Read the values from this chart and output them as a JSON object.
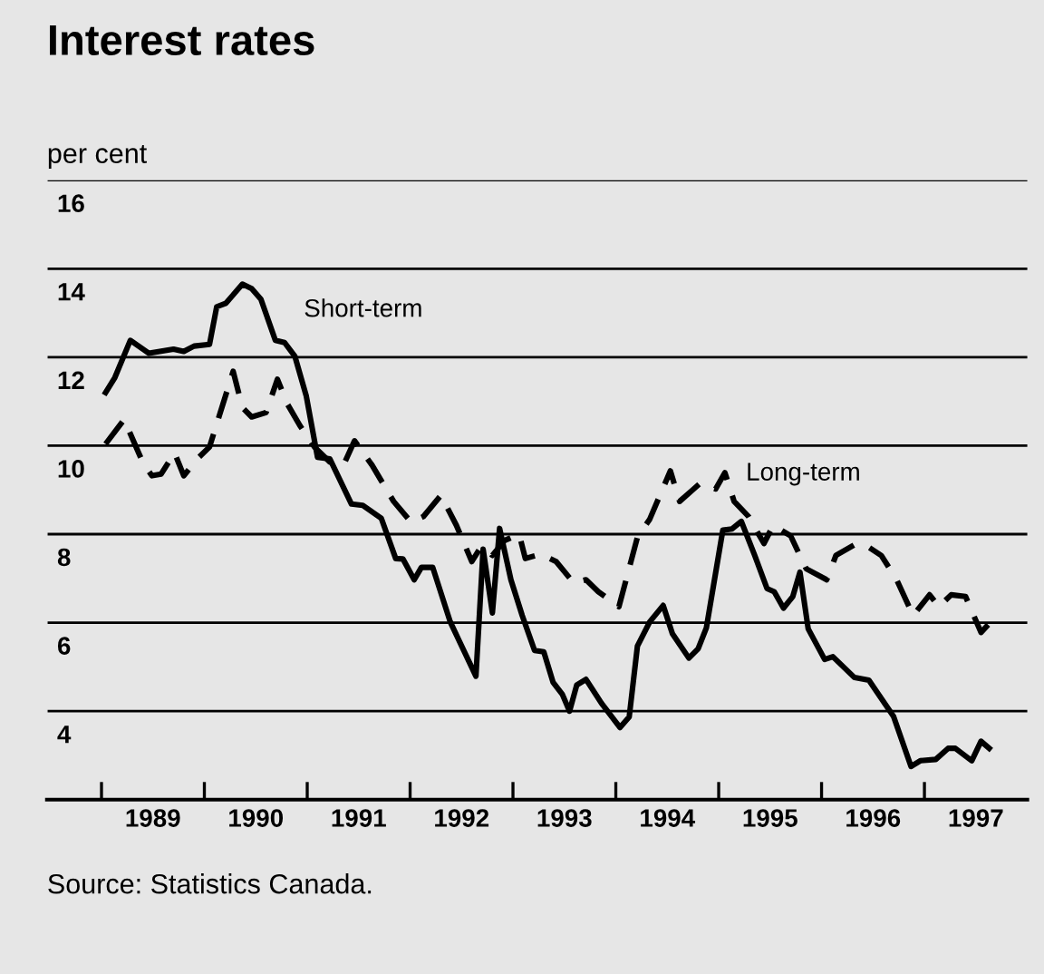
{
  "chart_data": {
    "type": "line",
    "title": "Interest rates",
    "ylabel": "per cent",
    "xlim": [
      1988.47,
      1998
    ],
    "ylim": [
      2,
      16
    ],
    "yticks": [
      {
        "value": 2,
        "label": null
      },
      4,
      6,
      8,
      10,
      12,
      14,
      16
    ],
    "xticks": [
      {
        "value": 1989,
        "label": null
      },
      {
        "value": 1989.5,
        "label": "1989"
      },
      {
        "value": 1990,
        "label": null
      },
      {
        "value": 1990.5,
        "label": "1990"
      },
      {
        "value": 1991,
        "label": null
      },
      {
        "value": 1991.5,
        "label": "1991"
      },
      {
        "value": 1992,
        "label": null
      },
      {
        "value": 1992.5,
        "label": "1992"
      },
      {
        "value": 1993,
        "label": null
      },
      {
        "value": 1993.5,
        "label": "1993"
      },
      {
        "value": 1994,
        "label": null
      },
      {
        "value": 1994.5,
        "label": "1994"
      },
      {
        "value": 1995,
        "label": null
      },
      {
        "value": 1995.5,
        "label": "1995"
      },
      {
        "value": 1996,
        "label": null
      },
      {
        "value": 1996.5,
        "label": "1996"
      },
      {
        "value": 1997,
        "label": null
      },
      {
        "value": 1997.5,
        "label": "1997"
      }
    ],
    "grid": "y",
    "legend": false,
    "marker": "none",
    "series": [
      {
        "color": "#000000",
        "line_style": "solid",
        "x": [
          1989.04,
          1989.13,
          1989.28,
          1989.46,
          1989.7,
          1989.8,
          1989.9,
          1990.05,
          1990.12,
          1990.21,
          1990.37,
          1990.46,
          1990.55,
          1990.69,
          1990.78,
          1990.88,
          1990.99,
          1991.1,
          1991.22,
          1991.43,
          1991.54,
          1991.72,
          1991.86,
          1991.93,
          1992.04,
          1992.11,
          1992.22,
          1992.39,
          1992.64,
          1992.71,
          1992.8,
          1992.87,
          1992.98,
          1993.09,
          1993.21,
          1993.3,
          1993.39,
          1993.48,
          1993.55,
          1993.62,
          1993.71,
          1993.86,
          1994.04,
          1994.13,
          1994.21,
          1994.33,
          1994.46,
          1994.55,
          1994.71,
          1994.8,
          1994.88,
          1995.04,
          1995.13,
          1995.22,
          1995.35,
          1995.47,
          1995.54,
          1995.63,
          1995.72,
          1995.79,
          1995.87,
          1996.03,
          1996.11,
          1996.32,
          1996.46,
          1996.7,
          1996.87,
          1996.96,
          1997.11,
          1997.23,
          1997.3,
          1997.46,
          1997.55,
          1997.63
        ],
        "values": [
          11.2,
          11.54,
          12.38,
          12.09,
          12.18,
          12.13,
          12.25,
          12.29,
          13.14,
          13.22,
          13.65,
          13.55,
          13.31,
          12.38,
          12.33,
          12.02,
          11.13,
          9.74,
          9.7,
          8.68,
          8.65,
          8.36,
          7.45,
          7.44,
          6.97,
          7.25,
          7.25,
          6.02,
          4.79,
          7.66,
          6.22,
          8.13,
          6.97,
          6.16,
          5.37,
          5.34,
          4.65,
          4.38,
          4.0,
          4.59,
          4.72,
          4.18,
          3.63,
          3.87,
          5.47,
          6.02,
          6.39,
          5.75,
          5.2,
          5.41,
          5.88,
          8.09,
          8.12,
          8.29,
          7.52,
          6.77,
          6.7,
          6.33,
          6.59,
          7.14,
          5.86,
          5.17,
          5.23,
          4.76,
          4.7,
          3.88,
          2.75,
          2.88,
          2.91,
          3.16,
          3.16,
          2.88,
          3.32,
          3.16
        ]
      },
      {
        "color": "#000000",
        "line_style": "dashed",
        "x": [
          1989.04,
          1989.22,
          1989.4,
          1989.49,
          1989.58,
          1989.71,
          1989.8,
          1989.93,
          1990.05,
          1990.28,
          1990.37,
          1990.46,
          1990.6,
          1990.71,
          1990.81,
          1990.93,
          1991.07,
          1991.22,
          1991.36,
          1991.46,
          1991.63,
          1991.84,
          1992.01,
          1992.13,
          1992.3,
          1992.45,
          1992.6,
          1992.69,
          1992.8,
          1992.92,
          1993.06,
          1993.12,
          1993.27,
          1993.42,
          1993.59,
          1993.71,
          1993.83,
          1994.03,
          1994.21,
          1994.33,
          1994.53,
          1994.62,
          1994.82,
          1994.97,
          1995.06,
          1995.15,
          1995.29,
          1995.44,
          1995.53,
          1995.7,
          1995.85,
          1996.05,
          1996.14,
          1996.32,
          1996.43,
          1996.58,
          1996.73,
          1996.89,
          1997.05,
          1997.14,
          1997.26,
          1997.4,
          1997.55,
          1997.63
        ],
        "values": [
          10.04,
          10.59,
          9.63,
          9.32,
          9.36,
          9.84,
          9.32,
          9.7,
          9.97,
          11.68,
          10.86,
          10.65,
          10.75,
          11.5,
          10.93,
          10.45,
          9.97,
          9.63,
          9.6,
          10.11,
          9.56,
          8.74,
          8.27,
          8.4,
          8.88,
          8.2,
          7.38,
          7.72,
          7.52,
          7.86,
          8.0,
          7.45,
          7.55,
          7.38,
          6.9,
          6.97,
          6.7,
          6.36,
          7.93,
          8.34,
          9.43,
          8.74,
          9.15,
          9.02,
          9.39,
          8.74,
          8.4,
          7.79,
          8.2,
          7.96,
          7.22,
          6.97,
          7.52,
          7.76,
          7.75,
          7.52,
          6.97,
          6.16,
          6.63,
          6.36,
          6.63,
          6.59,
          5.78,
          5.98
        ]
      }
    ],
    "annotations": [
      "Short-term",
      "Long-term",
      "Source: Statistics Canada."
    ]
  }
}
